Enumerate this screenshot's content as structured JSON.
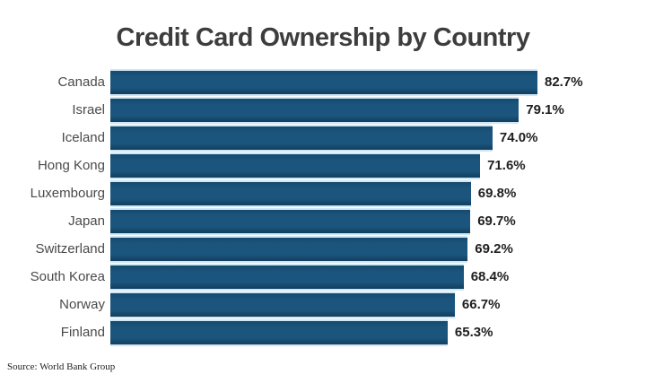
{
  "chart_data": {
    "type": "bar",
    "orientation": "horizontal",
    "title": "Credit Card Ownership by Country",
    "categories": [
      "Canada",
      "Israel",
      "Iceland",
      "Hong Kong",
      "Luxembourg",
      "Japan",
      "Switzerland",
      "South Korea",
      "Norway",
      "Finland"
    ],
    "values": [
      82.7,
      79.1,
      74.0,
      71.6,
      69.8,
      69.7,
      69.2,
      68.4,
      66.7,
      65.3
    ],
    "value_labels": [
      "82.7%",
      "79.1%",
      "74.0%",
      "71.6%",
      "69.8%",
      "69.7%",
      "69.2%",
      "68.4%",
      "66.7%",
      "65.3%"
    ],
    "xlabel": "",
    "ylabel": "",
    "xlim": [
      0,
      100
    ],
    "grid": false,
    "legend": "none",
    "value_suffix": "%",
    "bar_color": "#1b557e",
    "bar_gap_color": "#cfe6f3",
    "title_color": "#3d3d3d",
    "label_color": "#4a4a4a",
    "value_color": "#1f1f1f"
  },
  "source": "Source: World Bank Group"
}
